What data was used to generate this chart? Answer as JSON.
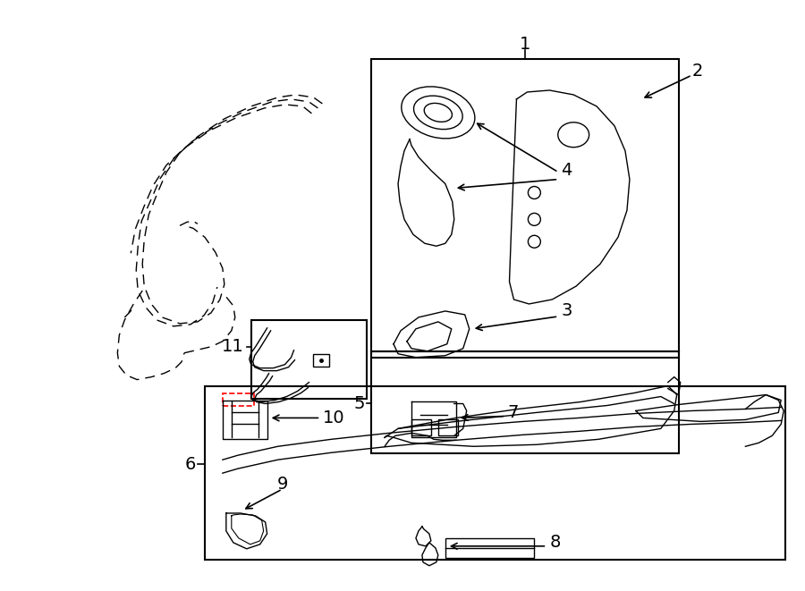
{
  "bg_color": "#ffffff",
  "line_color": "#000000",
  "red_color": "#ff0000",
  "fig_width": 9.0,
  "fig_height": 6.61,
  "dpi": 100,
  "lw": 1.0
}
